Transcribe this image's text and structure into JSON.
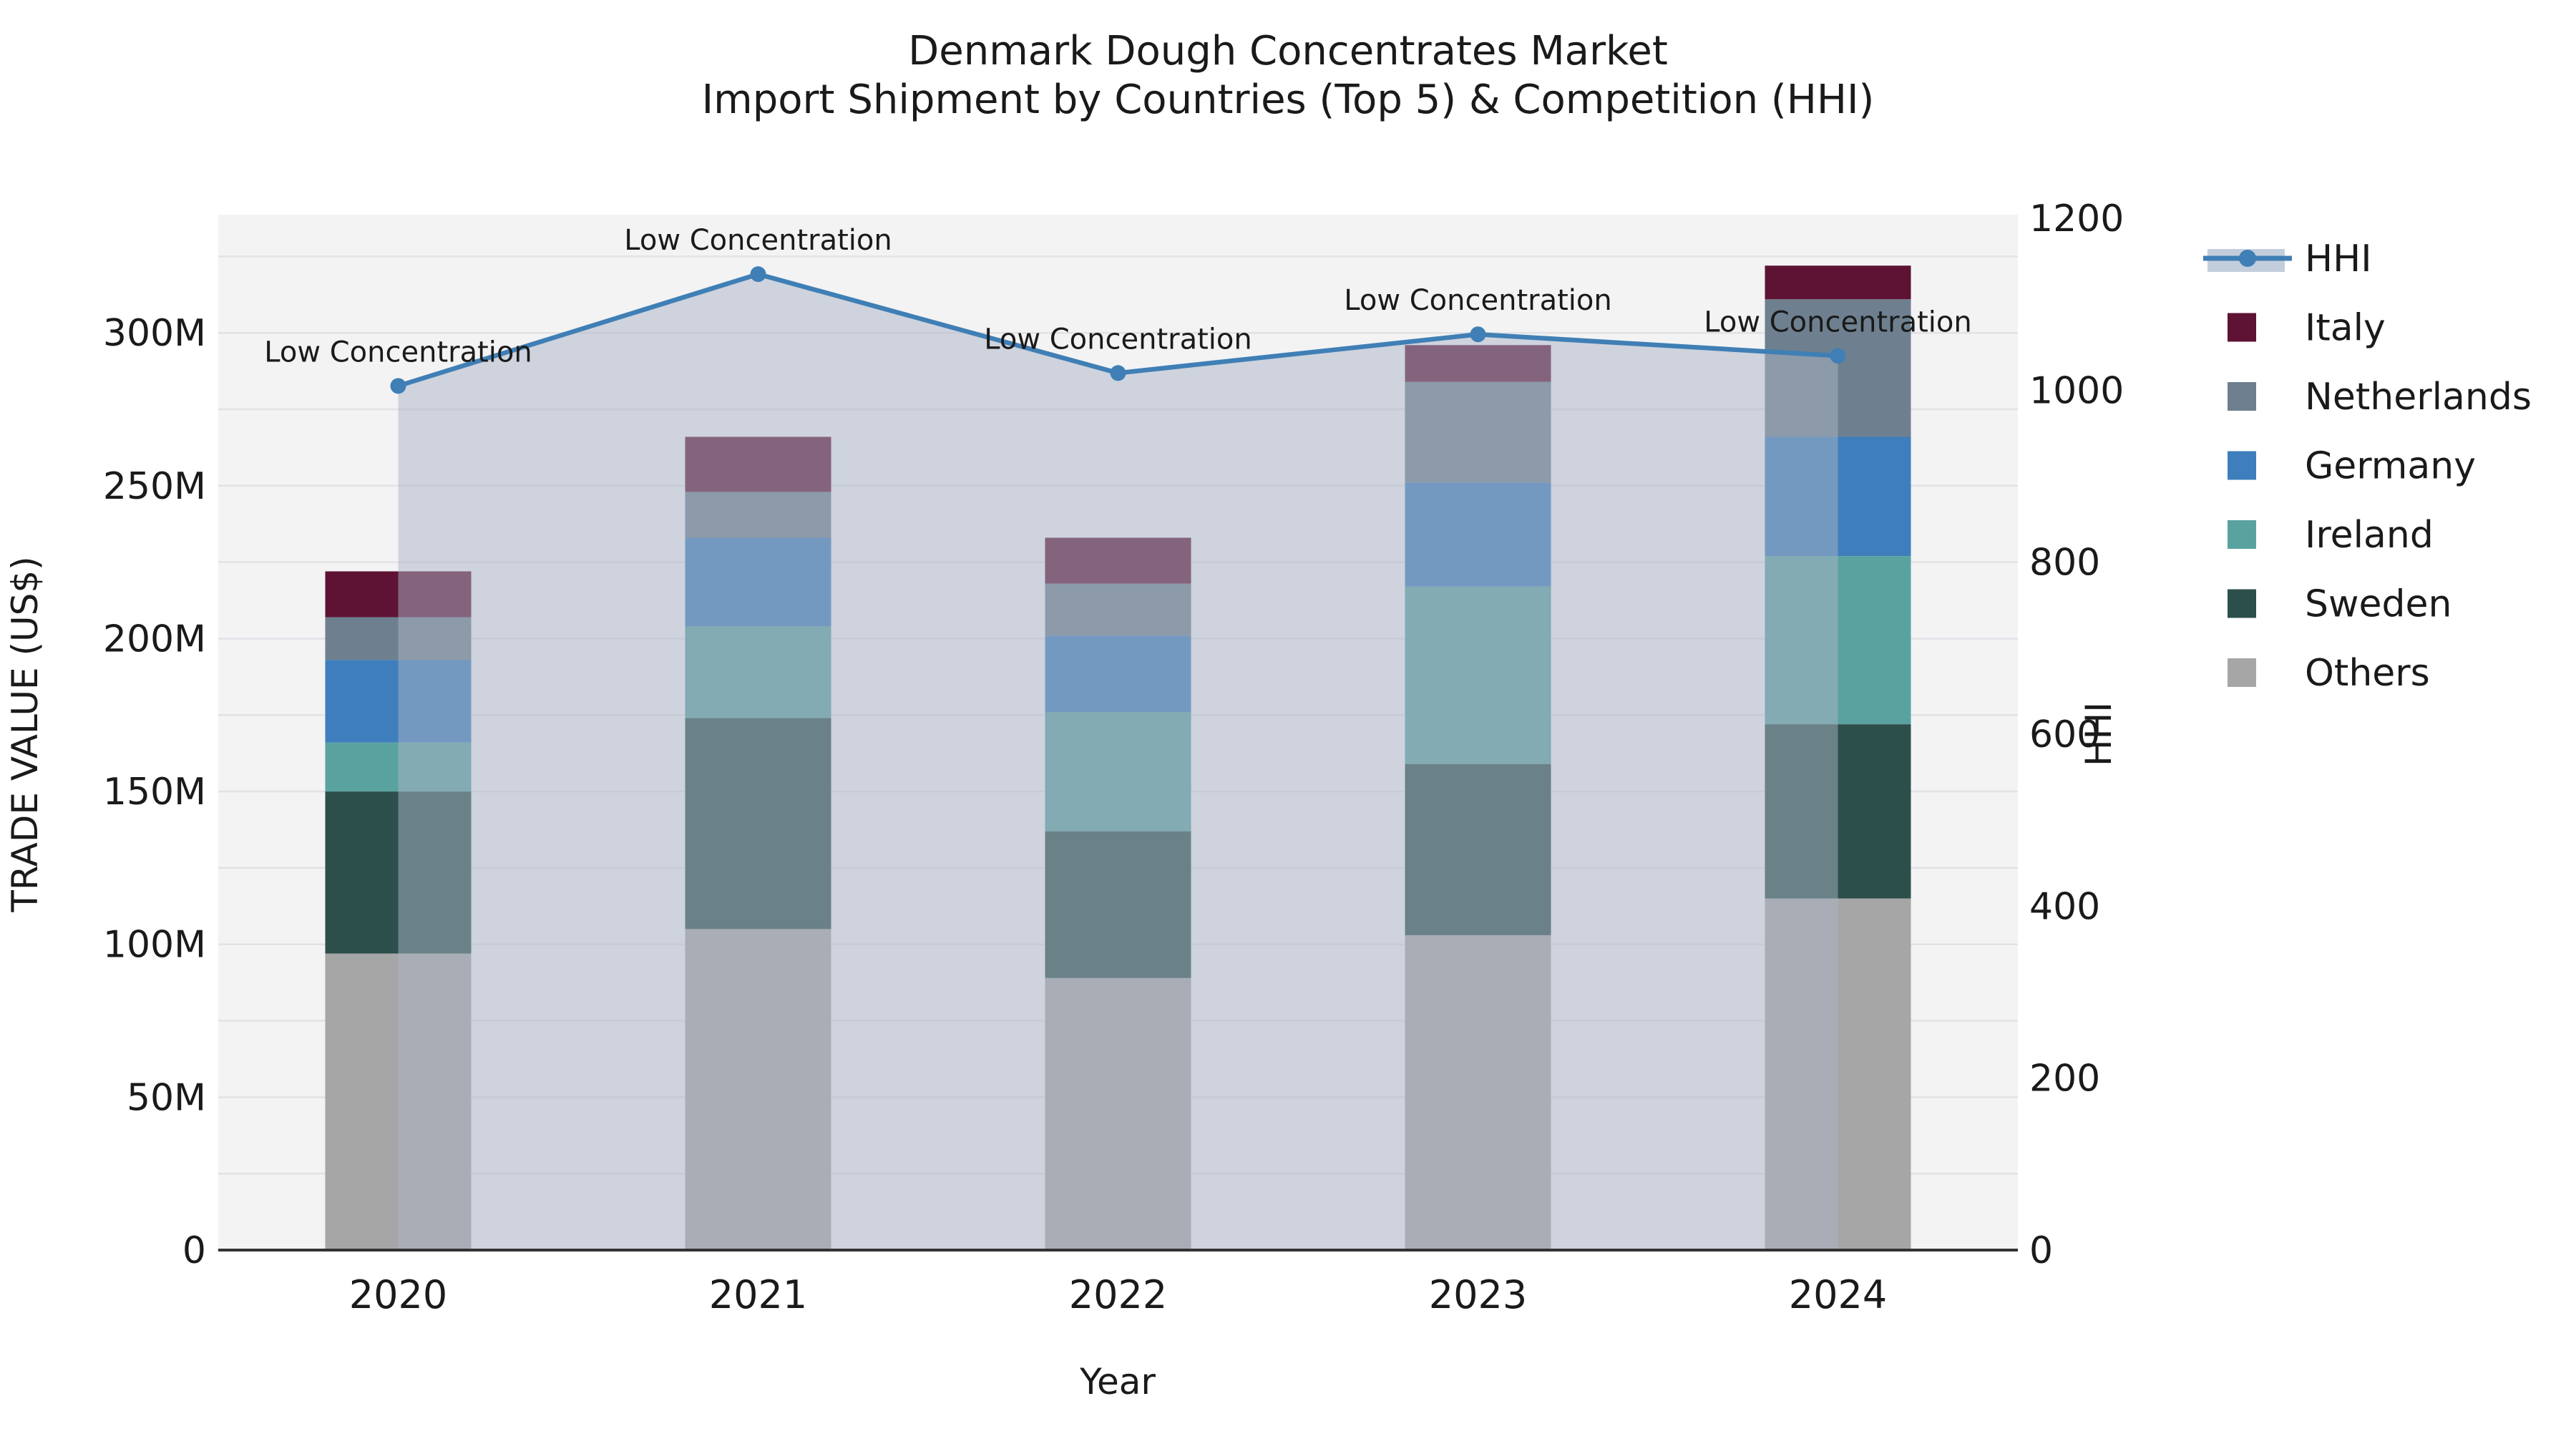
{
  "title": {
    "line1": "Denmark Dough Concentrates Market",
    "line2": "Import Shipment by Countries (Top 5) & Competition (HHI)"
  },
  "colors": {
    "plot_bg": "#f3f3f4",
    "grid": "#e2e2e6",
    "axis_line": "#333333",
    "hhi_line": "#3f7fb5",
    "area_fill": "#a9b4c6",
    "legend_band": "#c3cedd",
    "text": "#1a1a1a"
  },
  "chart_data": {
    "type": "combo: stacked-bar + line",
    "title": "Denmark Dough Concentrates Market — Import Shipment by Countries (Top 5) & Competition (HHI)",
    "categories": [
      "2020",
      "2021",
      "2022",
      "2023",
      "2024"
    ],
    "value_unit": "Million US$",
    "bar_series": [
      {
        "name": "Others",
        "color": "#a6a6a6",
        "values": [
          97,
          105,
          89,
          103,
          115
        ]
      },
      {
        "name": "Sweden",
        "color": "#2d4f4b",
        "values": [
          53,
          69,
          48,
          56,
          57
        ]
      },
      {
        "name": "Ireland",
        "color": "#5aa2a0",
        "values": [
          16,
          30,
          39,
          58,
          55
        ]
      },
      {
        "name": "Germany",
        "color": "#3e7ebc",
        "values": [
          27,
          29,
          25,
          34,
          39
        ]
      },
      {
        "name": "Netherlands",
        "color": "#6e808f",
        "values": [
          14,
          15,
          17,
          33,
          45
        ]
      },
      {
        "name": "Italy",
        "color": "#5e1335",
        "values": [
          15,
          18,
          15,
          12,
          11
        ]
      }
    ],
    "bar_totals": [
      222,
      266,
      233,
      296,
      322
    ],
    "line_series": {
      "name": "HHI",
      "color": "#3f7fb5",
      "values": [
        1005,
        1135,
        1020,
        1065,
        1040
      ],
      "area_opacity": 0.5
    },
    "annotations": [
      {
        "text": "Low Concentration",
        "x_index": 0
      },
      {
        "text": "Low Concentration",
        "x_index": 1
      },
      {
        "text": "Low Concentration",
        "x_index": 2
      },
      {
        "text": "Low Concentration",
        "x_index": 3
      },
      {
        "text": "Low Concentration",
        "x_index": 4
      }
    ],
    "left_axis": {
      "title": "TRADE VALUE (US$)",
      "tick_labels": [
        "0",
        "50M",
        "100M",
        "150M",
        "200M",
        "250M",
        "300M"
      ],
      "tick_values": [
        0,
        50,
        100,
        150,
        200,
        250,
        300
      ],
      "max": 337.5,
      "grid_step": 25
    },
    "right_axis": {
      "title": "HHI",
      "tick_labels": [
        "0",
        "200",
        "400",
        "600",
        "800",
        "1000",
        "1200"
      ],
      "tick_values": [
        0,
        200,
        400,
        600,
        800,
        1000,
        1200
      ],
      "max": 1200
    },
    "x_axis": {
      "title": "Year"
    },
    "legend": {
      "position": "right",
      "entries": [
        "HHI",
        "Italy",
        "Netherlands",
        "Germany",
        "Ireland",
        "Sweden",
        "Others"
      ]
    },
    "grid": true
  }
}
